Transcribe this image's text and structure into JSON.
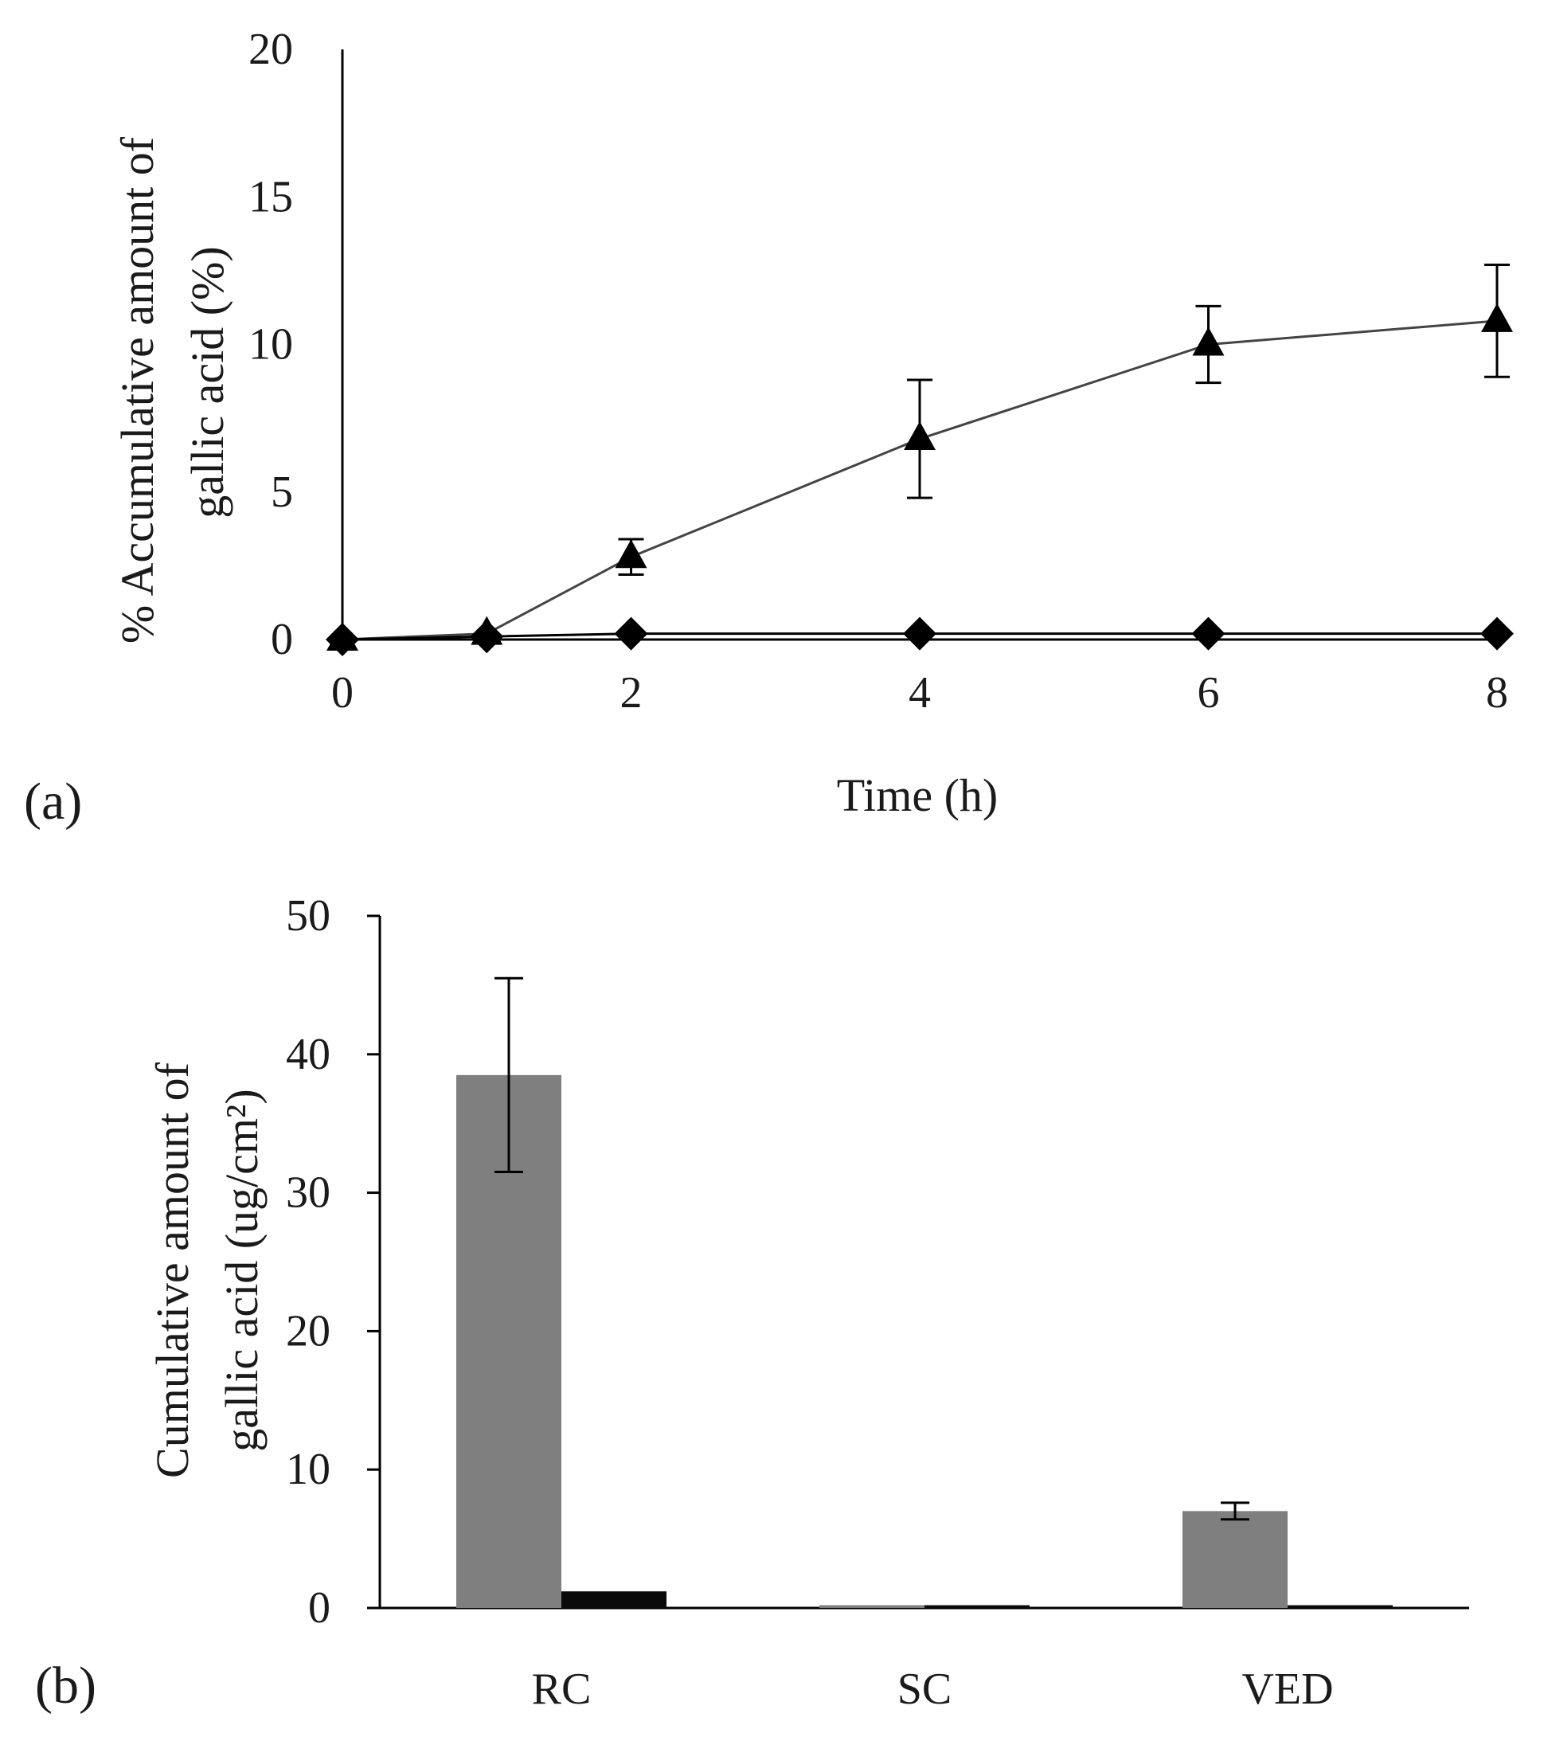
{
  "chart_data": [
    {
      "type": "line",
      "panel_label": "(a)",
      "xlabel": "Time (h)",
      "ylabel_lines": [
        "% Accumulative amount of",
        "gallic acid (%)"
      ],
      "xlim": [
        0,
        8
      ],
      "ylim": [
        0,
        20
      ],
      "x_ticks": [
        0,
        2,
        4,
        6,
        8
      ],
      "y_ticks": [
        0,
        5,
        10,
        15,
        20
      ],
      "grid": false,
      "series": [
        {
          "name": "triangle series",
          "marker": "triangle",
          "color": "#000000",
          "line_color": "#444444",
          "x": [
            0,
            1,
            2,
            4,
            6,
            8
          ],
          "values": [
            0.0,
            0.2,
            2.8,
            6.8,
            10.0,
            10.8
          ],
          "errors": [
            0,
            0,
            0.6,
            2.0,
            1.3,
            1.9
          ]
        },
        {
          "name": "diamond series",
          "marker": "diamond",
          "color": "#000000",
          "line_color": "#000000",
          "x": [
            0,
            1,
            2,
            4,
            6,
            8
          ],
          "values": [
            0.0,
            0.1,
            0.2,
            0.2,
            0.2,
            0.2
          ],
          "errors": [
            0,
            0,
            0,
            0,
            0,
            0
          ]
        }
      ]
    },
    {
      "type": "bar",
      "panel_label": "(b)",
      "categories": [
        "RC",
        "SC",
        "VED"
      ],
      "ylabel_lines": [
        "Cumulative amount of",
        "gallic acid (ug/cm²)"
      ],
      "ylim": [
        0,
        50
      ],
      "y_ticks": [
        0,
        10,
        20,
        30,
        40,
        50
      ],
      "grid": false,
      "series": [
        {
          "name": "grey bars",
          "color": "#7f7f7f",
          "values": [
            38.5,
            0.2,
            7.0
          ],
          "errors": [
            7.0,
            0,
            0.6
          ]
        },
        {
          "name": "black bars",
          "color": "#0a0a0a",
          "values": [
            1.2,
            0.2,
            0.2
          ],
          "errors": [
            0,
            0,
            0
          ]
        }
      ]
    }
  ]
}
